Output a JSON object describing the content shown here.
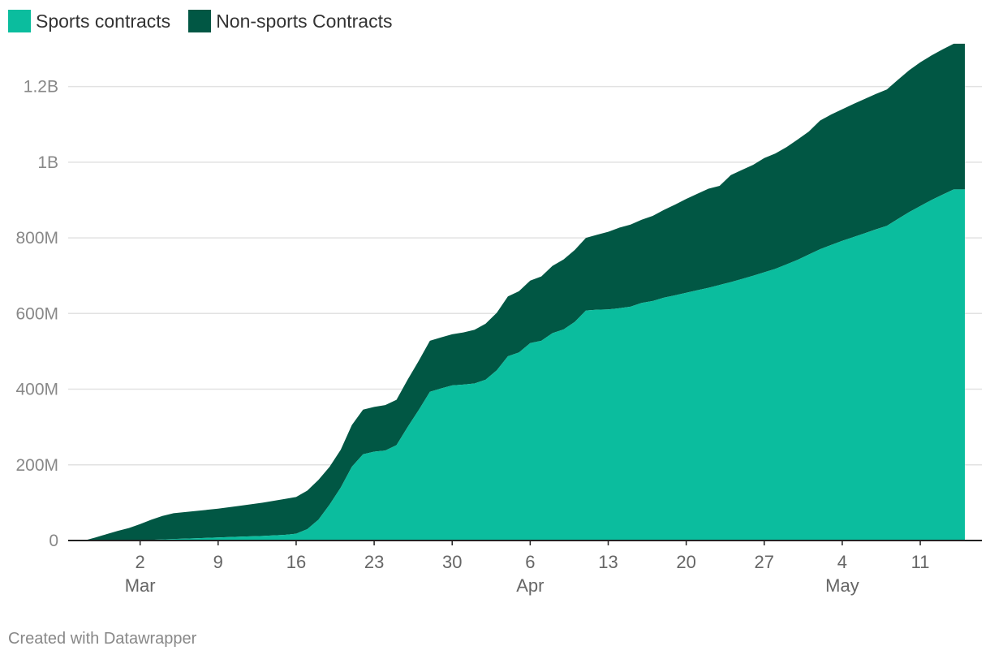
{
  "legend": {
    "sports_label": "Sports contracts",
    "nonsports_label": "Non-sports Contracts"
  },
  "footer": "Created with Datawrapper",
  "chart_data": {
    "type": "area",
    "stacked": true,
    "x_unit": "days since Feb 25",
    "x_range": [
      0,
      79
    ],
    "ylim": [
      0,
      1300000000
    ],
    "yticks": [
      {
        "value": 0,
        "label": "0"
      },
      {
        "value": 200000000,
        "label": "200M"
      },
      {
        "value": 400000000,
        "label": "400M"
      },
      {
        "value": 600000000,
        "label": "600M"
      },
      {
        "value": 800000000,
        "label": "800M"
      },
      {
        "value": 1000000000,
        "label": "1B"
      },
      {
        "value": 1200000000,
        "label": "1.2B"
      }
    ],
    "xticks": [
      {
        "x": 5,
        "label": "2",
        "sublabel": "Mar"
      },
      {
        "x": 12,
        "label": "9"
      },
      {
        "x": 19,
        "label": "16"
      },
      {
        "x": 26,
        "label": "23"
      },
      {
        "x": 33,
        "label": "30"
      },
      {
        "x": 40,
        "label": "6",
        "sublabel": "Apr"
      },
      {
        "x": 47,
        "label": "13"
      },
      {
        "x": 54,
        "label": "20"
      },
      {
        "x": 61,
        "label": "27"
      },
      {
        "x": 68,
        "label": "4",
        "sublabel": "May"
      },
      {
        "x": 75,
        "label": "11"
      }
    ],
    "colors": {
      "sports": "#0bbd9e",
      "nonsports": "#015744"
    },
    "series": [
      {
        "name": "Sports contracts",
        "points": [
          [
            0,
            0
          ],
          [
            2,
            0
          ],
          [
            4,
            1000000
          ],
          [
            6,
            2000000
          ],
          [
            8,
            4000000
          ],
          [
            10,
            6000000
          ],
          [
            12,
            8000000
          ],
          [
            14,
            10000000
          ],
          [
            16,
            12000000
          ],
          [
            18,
            15000000
          ],
          [
            19,
            18000000
          ],
          [
            20,
            30000000
          ],
          [
            21,
            55000000
          ],
          [
            22,
            95000000
          ],
          [
            23,
            140000000
          ],
          [
            24,
            195000000
          ],
          [
            25,
            228000000
          ],
          [
            26,
            235000000
          ],
          [
            27,
            238000000
          ],
          [
            28,
            252000000
          ],
          [
            29,
            300000000
          ],
          [
            30,
            345000000
          ],
          [
            31,
            393000000
          ],
          [
            32,
            402000000
          ],
          [
            33,
            410000000
          ],
          [
            34,
            412000000
          ],
          [
            35,
            415000000
          ],
          [
            36,
            425000000
          ],
          [
            37,
            450000000
          ],
          [
            38,
            487000000
          ],
          [
            39,
            497000000
          ],
          [
            40,
            522000000
          ],
          [
            41,
            528000000
          ],
          [
            42,
            548000000
          ],
          [
            43,
            558000000
          ],
          [
            44,
            578000000
          ],
          [
            45,
            608000000
          ],
          [
            46,
            610000000
          ],
          [
            47,
            611000000
          ],
          [
            48,
            614000000
          ],
          [
            49,
            618000000
          ],
          [
            50,
            628000000
          ],
          [
            51,
            633000000
          ],
          [
            52,
            642000000
          ],
          [
            53,
            648000000
          ],
          [
            54,
            655000000
          ],
          [
            56,
            668000000
          ],
          [
            58,
            683000000
          ],
          [
            60,
            700000000
          ],
          [
            62,
            718000000
          ],
          [
            64,
            742000000
          ],
          [
            66,
            770000000
          ],
          [
            68,
            792000000
          ],
          [
            70,
            812000000
          ],
          [
            72,
            832000000
          ],
          [
            74,
            868000000
          ],
          [
            76,
            900000000
          ],
          [
            78,
            928000000
          ],
          [
            79,
            928000000
          ]
        ]
      },
      {
        "name": "Non-sports Contracts",
        "points": [
          [
            0,
            0
          ],
          [
            1,
            8000000
          ],
          [
            2,
            17000000
          ],
          [
            3,
            25000000
          ],
          [
            4,
            32000000
          ],
          [
            5,
            42000000
          ],
          [
            6,
            53000000
          ],
          [
            7,
            62000000
          ],
          [
            8,
            68000000
          ],
          [
            10,
            72000000
          ],
          [
            12,
            76000000
          ],
          [
            14,
            82000000
          ],
          [
            16,
            88000000
          ],
          [
            18,
            95000000
          ],
          [
            19,
            97000000
          ],
          [
            20,
            102000000
          ],
          [
            21,
            105000000
          ],
          [
            22,
            100000000
          ],
          [
            23,
            100000000
          ],
          [
            24,
            110000000
          ],
          [
            25,
            118000000
          ],
          [
            26,
            118000000
          ],
          [
            27,
            120000000
          ],
          [
            28,
            120000000
          ],
          [
            29,
            125000000
          ],
          [
            30,
            130000000
          ],
          [
            31,
            135000000
          ],
          [
            32,
            135000000
          ],
          [
            33,
            135000000
          ],
          [
            34,
            138000000
          ],
          [
            35,
            142000000
          ],
          [
            36,
            148000000
          ],
          [
            37,
            152000000
          ],
          [
            38,
            158000000
          ],
          [
            39,
            162000000
          ],
          [
            40,
            165000000
          ],
          [
            41,
            170000000
          ],
          [
            42,
            178000000
          ],
          [
            43,
            185000000
          ],
          [
            44,
            190000000
          ],
          [
            45,
            192000000
          ],
          [
            46,
            198000000
          ],
          [
            47,
            205000000
          ],
          [
            48,
            213000000
          ],
          [
            49,
            217000000
          ],
          [
            50,
            220000000
          ],
          [
            51,
            225000000
          ],
          [
            52,
            232000000
          ],
          [
            53,
            240000000
          ],
          [
            54,
            248000000
          ],
          [
            55,
            255000000
          ],
          [
            56,
            262000000
          ],
          [
            57,
            262000000
          ],
          [
            58,
            283000000
          ],
          [
            59,
            288000000
          ],
          [
            60,
            293000000
          ],
          [
            61,
            302000000
          ],
          [
            62,
            305000000
          ],
          [
            63,
            310000000
          ],
          [
            64,
            318000000
          ],
          [
            65,
            325000000
          ],
          [
            66,
            340000000
          ],
          [
            67,
            345000000
          ],
          [
            68,
            348000000
          ],
          [
            69,
            352000000
          ],
          [
            70,
            355000000
          ],
          [
            71,
            358000000
          ],
          [
            72,
            360000000
          ],
          [
            73,
            368000000
          ],
          [
            74,
            375000000
          ],
          [
            75,
            380000000
          ],
          [
            76,
            382000000
          ],
          [
            77,
            384000000
          ],
          [
            78,
            385000000
          ],
          [
            79,
            385000000
          ]
        ]
      }
    ]
  }
}
